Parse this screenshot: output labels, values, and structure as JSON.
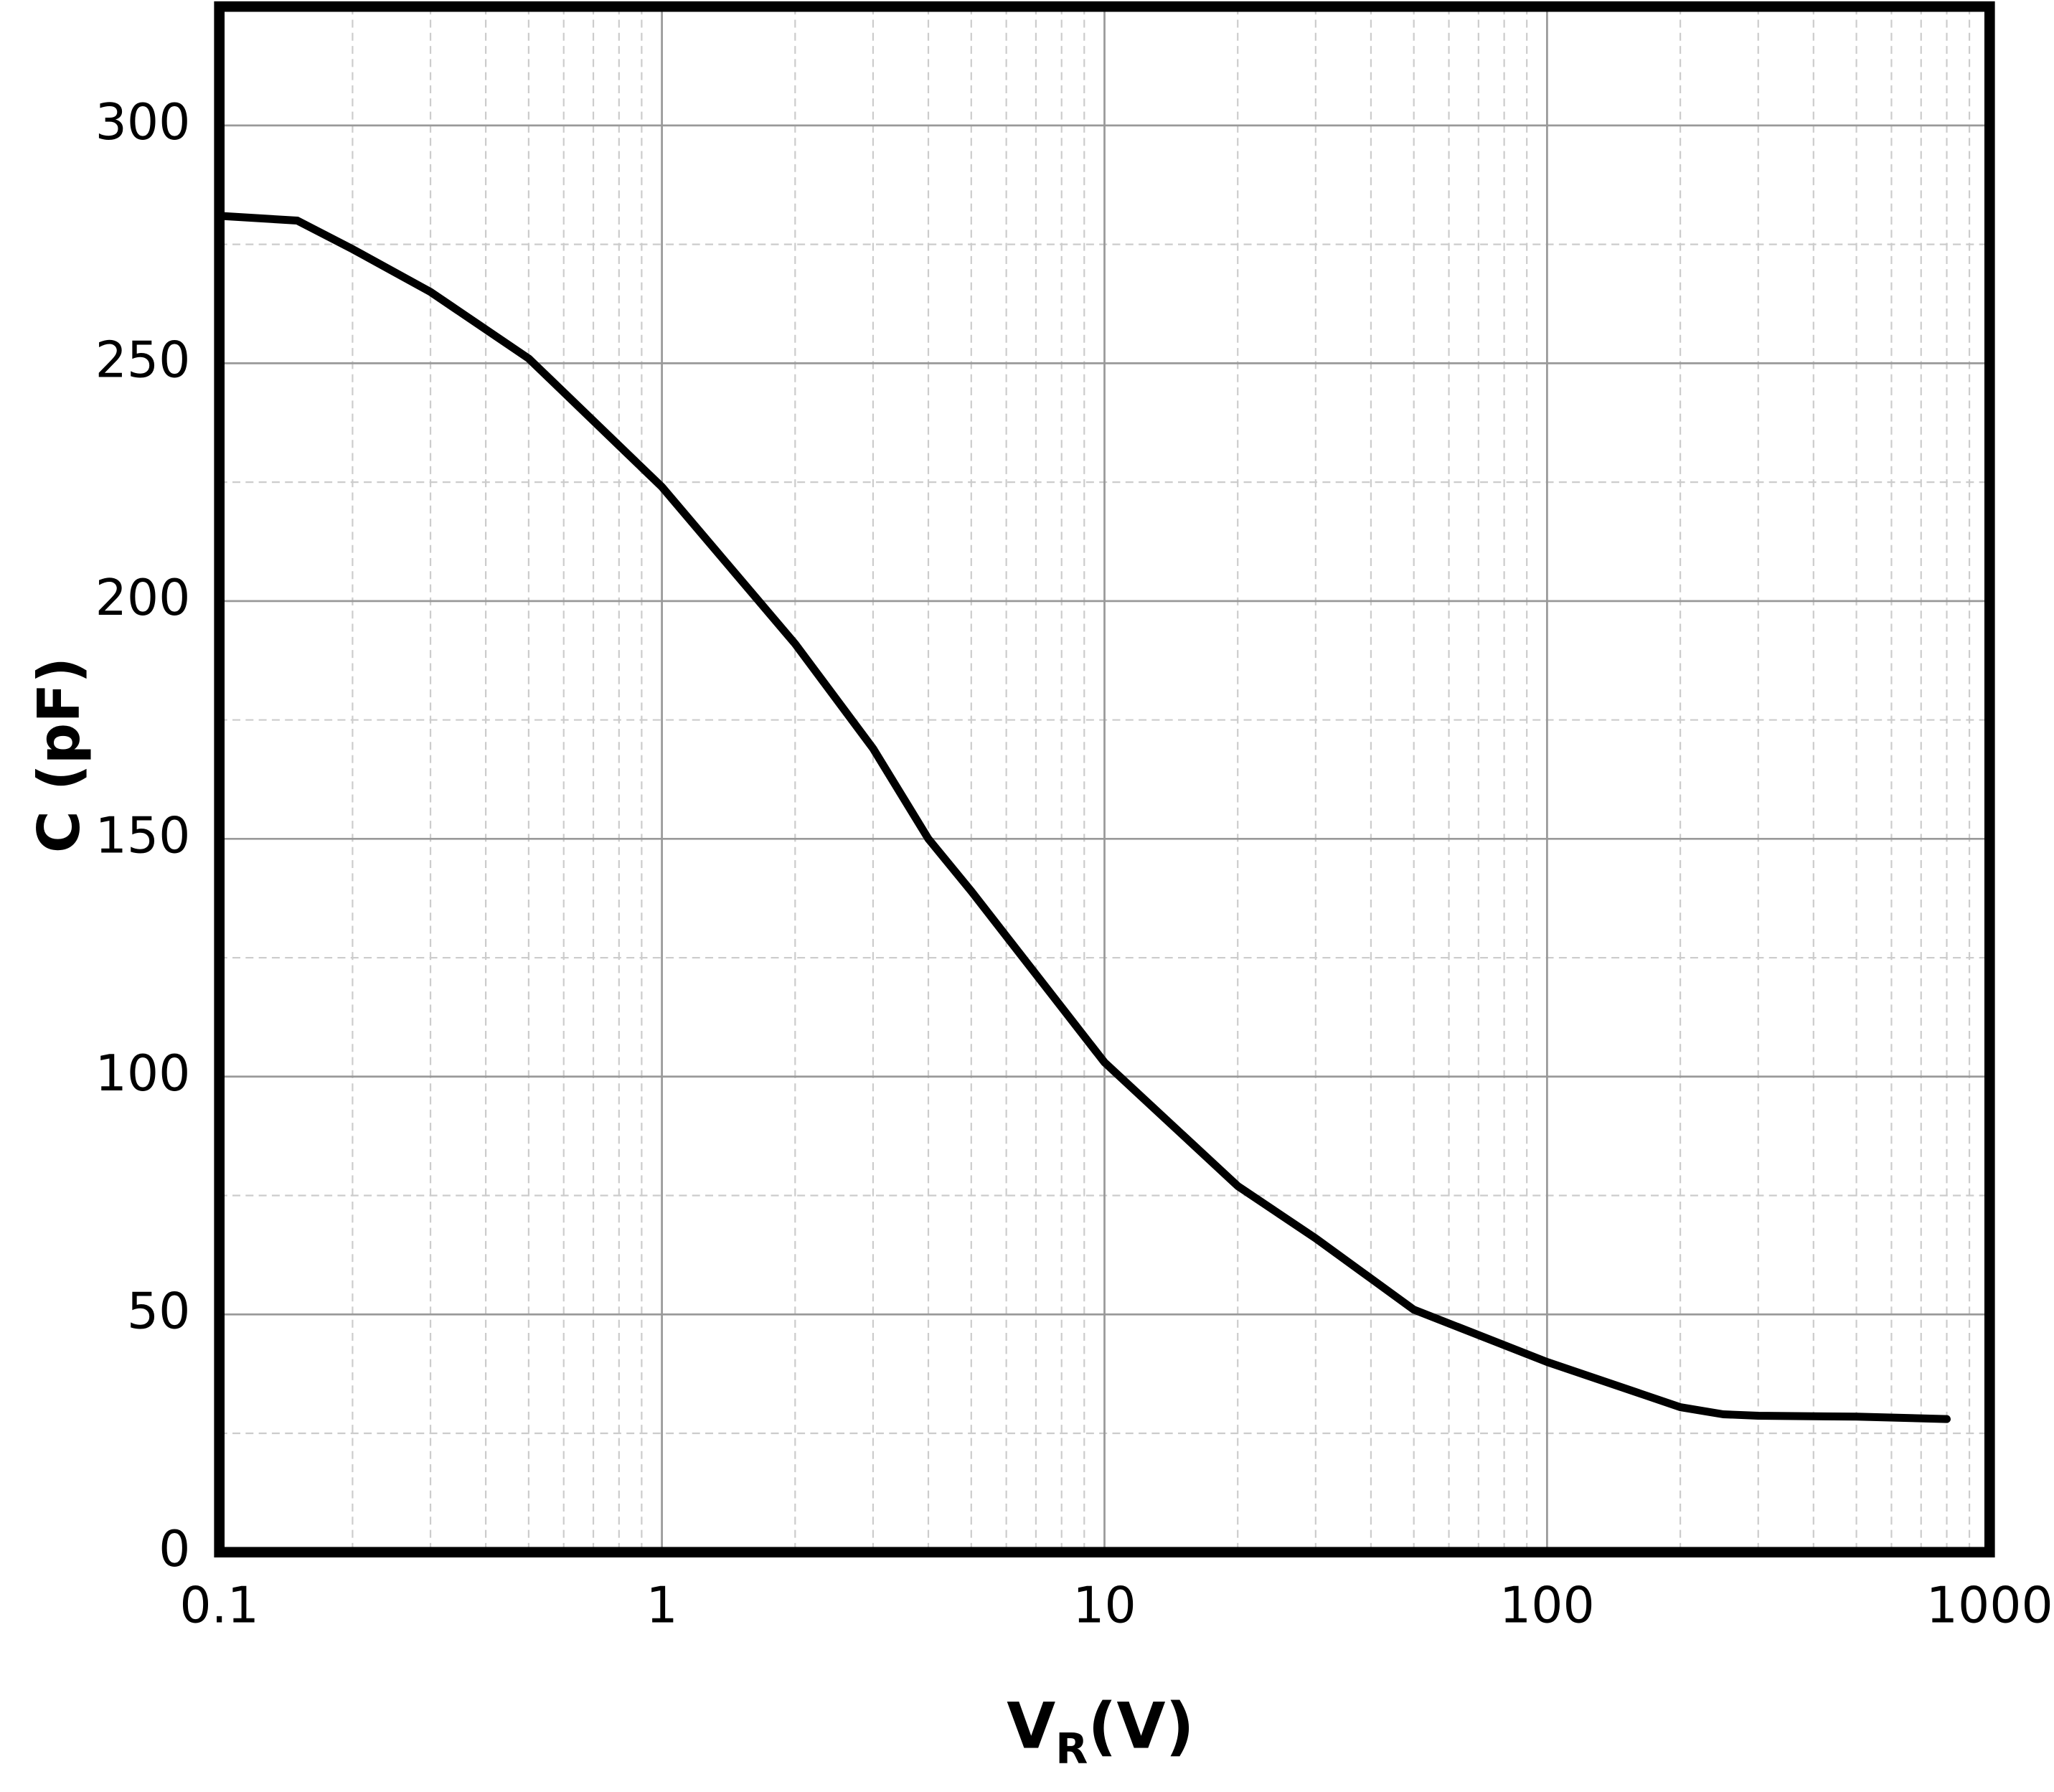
{
  "chart_data": {
    "type": "line",
    "xlabel": "V",
    "xlabel_sub": "R",
    "xlabel_suffix": "(V)",
    "ylabel": "C (pF)",
    "log_x": true,
    "grid": true,
    "xlim": [
      0.1,
      1000
    ],
    "xticks": [
      0.1,
      1,
      10,
      100,
      1000
    ],
    "ylim": [
      0,
      325
    ],
    "yticks": [
      0,
      50,
      100,
      150,
      200,
      250,
      300
    ],
    "x": [
      0.1,
      0.15,
      0.2,
      0.3,
      0.5,
      1,
      2,
      3,
      4,
      5,
      10,
      20,
      30,
      50,
      100,
      200,
      250,
      300,
      500,
      800
    ],
    "series": [
      {
        "color": "#000000",
        "values": [
          281,
          280,
          274,
          265,
          251,
          224,
          191,
          169,
          150,
          139,
          103,
          77,
          66,
          51,
          40,
          30.5,
          29,
          28.7,
          28.5,
          28
        ]
      }
    ]
  }
}
